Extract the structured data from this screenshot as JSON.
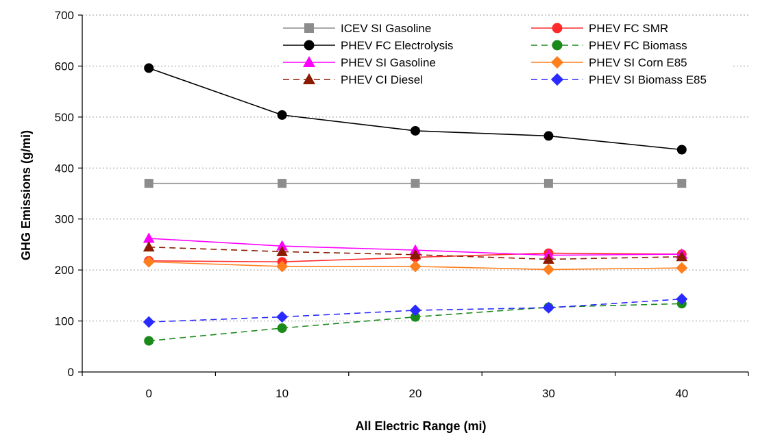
{
  "chart_data": {
    "type": "line",
    "xlabel": "All Electric Range (mi)",
    "ylabel": "GHG Emissions (g/mi)",
    "x": [
      0,
      10,
      20,
      30,
      40
    ],
    "xlim": [
      -5,
      45
    ],
    "ylim": [
      0,
      700
    ],
    "yticks": [
      0,
      100,
      200,
      300,
      400,
      500,
      600,
      700
    ],
    "grid": "horizontal dotted",
    "legend_position": "top",
    "series": [
      {
        "name": "ICEV SI Gasoline",
        "values": [
          370,
          370,
          370,
          370,
          370
        ],
        "color": "#8c8c8c",
        "marker": "square",
        "dash": "solid"
      },
      {
        "name": "PHEV FC SMR",
        "values": [
          218,
          216,
          225,
          233,
          231
        ],
        "color": "#ff2a2a",
        "marker": "circle",
        "dash": "solid"
      },
      {
        "name": "PHEV FC Electrolysis",
        "values": [
          596,
          504,
          473,
          463,
          436
        ],
        "color": "#000000",
        "marker": "circle",
        "dash": "solid"
      },
      {
        "name": "PHEV FC Biomass",
        "values": [
          61,
          86,
          108,
          127,
          134
        ],
        "color": "#1a8a1a",
        "marker": "circle",
        "dash": "dashed"
      },
      {
        "name": "PHEV SI Gasoline",
        "values": [
          262,
          247,
          239,
          229,
          231
        ],
        "color": "#ff00ff",
        "marker": "triangle",
        "dash": "solid"
      },
      {
        "name": "PHEV SI Corn E85",
        "values": [
          216,
          207,
          207,
          201,
          204
        ],
        "color": "#ff7f1e",
        "marker": "diamond",
        "dash": "solid"
      },
      {
        "name": "PHEV CI Diesel",
        "values": [
          245,
          236,
          230,
          221,
          226
        ],
        "color": "#8b1a00",
        "marker": "triangle",
        "dash": "dashed"
      },
      {
        "name": "PHEV SI Biomass E85",
        "values": [
          98,
          108,
          121,
          126,
          143
        ],
        "color": "#2a2aff",
        "marker": "diamond",
        "dash": "dashed"
      }
    ]
  }
}
